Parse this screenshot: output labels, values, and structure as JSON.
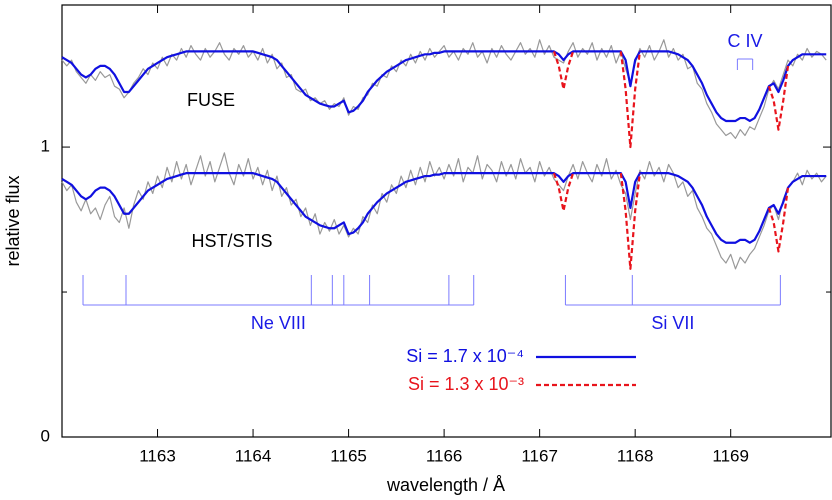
{
  "chart_data": {
    "type": "line",
    "xlabel": "wavelength / Å",
    "ylabel": "relative flux",
    "annotations": [
      "FUSE",
      "HST/STIS"
    ],
    "xlim": [
      1162,
      1170.05
    ],
    "ylim": [
      0,
      1.49
    ],
    "xticks": [
      1163,
      1164,
      1165,
      1166,
      1167,
      1168,
      1169
    ],
    "yticks": [
      0,
      1
    ],
    "yminor": [
      0.5
    ],
    "line_ids": [
      {
        "label": "Ne VIII",
        "style": "comb",
        "wavelengths": [
          1162.22,
          1162.67,
          1164.61,
          1164.83,
          1164.95,
          1165.22,
          1166.05,
          1166.31
        ]
      },
      {
        "label": "Si VII",
        "style": "comb",
        "wavelengths": [
          1167.27,
          1167.97,
          1169.52
        ]
      },
      {
        "label": "C IV",
        "style": "bracket",
        "wavelengths": [
          1169.07,
          1169.23
        ]
      }
    ],
    "line_id_color": "#7b7bff",
    "line_id_label_color": "#1a1ae6",
    "x": [
      1162,
      1162.05,
      1162.1,
      1162.15,
      1162.2,
      1162.25,
      1162.3,
      1162.35,
      1162.4,
      1162.45,
      1162.5,
      1162.55,
      1162.6,
      1162.65,
      1162.7,
      1162.75,
      1162.8,
      1162.85,
      1162.9,
      1162.95,
      1163,
      1163.05,
      1163.1,
      1163.15,
      1163.2,
      1163.25,
      1163.3,
      1163.35,
      1163.4,
      1163.45,
      1163.5,
      1163.55,
      1163.6,
      1163.65,
      1163.7,
      1163.75,
      1163.8,
      1163.85,
      1163.9,
      1163.95,
      1164,
      1164.05,
      1164.1,
      1164.15,
      1164.2,
      1164.25,
      1164.3,
      1164.35,
      1164.4,
      1164.45,
      1164.5,
      1164.55,
      1164.6,
      1164.65,
      1164.7,
      1164.75,
      1164.8,
      1164.85,
      1164.9,
      1164.95,
      1165,
      1165.05,
      1165.1,
      1165.15,
      1165.2,
      1165.25,
      1165.3,
      1165.35,
      1165.4,
      1165.45,
      1165.5,
      1165.55,
      1165.6,
      1165.65,
      1165.7,
      1165.75,
      1165.8,
      1165.85,
      1165.9,
      1165.95,
      1166,
      1166.05,
      1166.1,
      1166.15,
      1166.2,
      1166.25,
      1166.3,
      1166.35,
      1166.4,
      1166.45,
      1166.5,
      1166.55,
      1166.6,
      1166.65,
      1166.7,
      1166.75,
      1166.8,
      1166.85,
      1166.9,
      1166.95,
      1167,
      1167.05,
      1167.1,
      1167.15,
      1167.2,
      1167.25,
      1167.3,
      1167.35,
      1167.4,
      1167.45,
      1167.5,
      1167.55,
      1167.6,
      1167.65,
      1167.7,
      1167.75,
      1167.8,
      1167.85,
      1167.9,
      1167.95,
      1168,
      1168.05,
      1168.1,
      1168.15,
      1168.2,
      1168.25,
      1168.3,
      1168.35,
      1168.4,
      1168.45,
      1168.5,
      1168.55,
      1168.6,
      1168.65,
      1168.7,
      1168.75,
      1168.8,
      1168.85,
      1168.9,
      1168.95,
      1169,
      1169.05,
      1169.1,
      1169.15,
      1169.2,
      1169.25,
      1169.3,
      1169.35,
      1169.4,
      1169.45,
      1169.5,
      1169.55,
      1169.6,
      1169.65,
      1169.7,
      1169.75,
      1169.8,
      1169.85,
      1169.9,
      1169.95,
      1170
    ],
    "series": [
      {
        "color": "#999999",
        "dash": false,
        "values": [
          1.3,
          1.28,
          1.3,
          1.26,
          1.24,
          1.22,
          1.25,
          1.23,
          1.26,
          1.24,
          1.25,
          1.21,
          1.2,
          1.17,
          1.19,
          1.22,
          1.24,
          1.27,
          1.25,
          1.29,
          1.27,
          1.31,
          1.28,
          1.32,
          1.3,
          1.34,
          1.31,
          1.35,
          1.32,
          1.3,
          1.34,
          1.31,
          1.33,
          1.36,
          1.32,
          1.3,
          1.34,
          1.32,
          1.35,
          1.31,
          1.33,
          1.3,
          1.34,
          1.29,
          1.32,
          1.27,
          1.29,
          1.24,
          1.25,
          1.2,
          1.19,
          1.2,
          1.16,
          1.17,
          1.15,
          1.16,
          1.13,
          1.15,
          1.14,
          1.17,
          1.11,
          1.14,
          1.13,
          1.17,
          1.18,
          1.22,
          1.21,
          1.25,
          1.24,
          1.28,
          1.26,
          1.3,
          1.28,
          1.32,
          1.29,
          1.33,
          1.3,
          1.34,
          1.31,
          1.33,
          1.35,
          1.31,
          1.33,
          1.3,
          1.34,
          1.32,
          1.36,
          1.31,
          1.33,
          1.29,
          1.34,
          1.31,
          1.35,
          1.32,
          1.3,
          1.33,
          1.36,
          1.32,
          1.34,
          1.31,
          1.37,
          1.32,
          1.35,
          1.31,
          1.3,
          1.29,
          1.33,
          1.36,
          1.31,
          1.34,
          1.32,
          1.36,
          1.3,
          1.34,
          1.31,
          1.35,
          1.29,
          1.33,
          1.27,
          1.22,
          1.29,
          1.34,
          1.31,
          1.35,
          1.3,
          1.33,
          1.37,
          1.31,
          1.34,
          1.3,
          1.32,
          1.27,
          1.28,
          1.22,
          1.2,
          1.15,
          1.12,
          1.08,
          1.06,
          1.04,
          1.05,
          1.03,
          1.06,
          1.04,
          1.07,
          1.06,
          1.1,
          1.14,
          1.2,
          1.23,
          1.2,
          1.25,
          1.3,
          1.28,
          1.32,
          1.3,
          1.34,
          1.31,
          1.33,
          1.32,
          1.3
        ]
      },
      {
        "color": "#999999",
        "dash": false,
        "values": [
          0.88,
          0.85,
          0.87,
          0.81,
          0.78,
          0.82,
          0.77,
          0.79,
          0.75,
          0.8,
          0.83,
          0.76,
          0.74,
          0.79,
          0.72,
          0.8,
          0.85,
          0.82,
          0.88,
          0.84,
          0.9,
          0.86,
          0.93,
          0.88,
          0.95,
          0.89,
          0.94,
          0.87,
          0.92,
          0.97,
          0.9,
          0.95,
          0.88,
          0.93,
          0.98,
          0.91,
          0.87,
          0.94,
          0.9,
          0.96,
          0.89,
          0.93,
          0.87,
          0.92,
          0.85,
          0.9,
          0.83,
          0.86,
          0.8,
          0.82,
          0.76,
          0.79,
          0.73,
          0.77,
          0.7,
          0.74,
          0.71,
          0.75,
          0.7,
          0.73,
          0.69,
          0.72,
          0.7,
          0.76,
          0.74,
          0.8,
          0.77,
          0.84,
          0.81,
          0.87,
          0.84,
          0.9,
          0.86,
          0.92,
          0.87,
          0.93,
          0.88,
          0.95,
          0.9,
          0.93,
          0.89,
          0.94,
          0.9,
          0.96,
          0.88,
          0.93,
          0.91,
          0.97,
          0.89,
          0.94,
          0.92,
          0.88,
          0.95,
          0.9,
          0.94,
          0.89,
          0.96,
          0.91,
          0.93,
          0.88,
          0.95,
          0.9,
          0.93,
          0.89,
          0.87,
          0.85,
          0.9,
          0.94,
          0.89,
          0.95,
          0.91,
          0.88,
          0.94,
          0.9,
          0.96,
          0.89,
          0.92,
          0.87,
          0.84,
          0.75,
          0.84,
          0.92,
          0.89,
          0.95,
          0.9,
          0.93,
          0.88,
          0.94,
          0.91,
          0.86,
          0.88,
          0.83,
          0.85,
          0.79,
          0.76,
          0.72,
          0.7,
          0.66,
          0.62,
          0.6,
          0.63,
          0.58,
          0.62,
          0.6,
          0.63,
          0.65,
          0.69,
          0.73,
          0.78,
          0.8,
          0.75,
          0.82,
          0.86,
          0.88,
          0.91,
          0.87,
          0.92,
          0.89,
          0.91,
          0.88,
          0.9
        ]
      },
      {
        "name": "Si = 1.7 x 10⁻⁴",
        "color": "#1010e0",
        "dash": false,
        "values": [
          1.31,
          1.3,
          1.29,
          1.27,
          1.25,
          1.24,
          1.25,
          1.27,
          1.28,
          1.28,
          1.27,
          1.25,
          1.22,
          1.19,
          1.19,
          1.21,
          1.23,
          1.25,
          1.27,
          1.28,
          1.29,
          1.3,
          1.31,
          1.315,
          1.32,
          1.325,
          1.33,
          1.33,
          1.33,
          1.33,
          1.33,
          1.33,
          1.33,
          1.33,
          1.33,
          1.33,
          1.33,
          1.33,
          1.33,
          1.33,
          1.33,
          1.325,
          1.32,
          1.315,
          1.31,
          1.3,
          1.28,
          1.26,
          1.24,
          1.22,
          1.2,
          1.18,
          1.17,
          1.16,
          1.15,
          1.145,
          1.14,
          1.14,
          1.15,
          1.16,
          1.12,
          1.125,
          1.14,
          1.16,
          1.19,
          1.21,
          1.23,
          1.245,
          1.26,
          1.27,
          1.28,
          1.29,
          1.3,
          1.305,
          1.31,
          1.315,
          1.32,
          1.32,
          1.325,
          1.325,
          1.33,
          1.33,
          1.33,
          1.33,
          1.33,
          1.33,
          1.33,
          1.33,
          1.33,
          1.33,
          1.33,
          1.33,
          1.33,
          1.33,
          1.33,
          1.33,
          1.33,
          1.33,
          1.33,
          1.33,
          1.33,
          1.33,
          1.33,
          1.33,
          1.32,
          1.3,
          1.32,
          1.33,
          1.33,
          1.33,
          1.33,
          1.33,
          1.33,
          1.33,
          1.33,
          1.33,
          1.33,
          1.33,
          1.3,
          1.21,
          1.3,
          1.33,
          1.33,
          1.33,
          1.33,
          1.33,
          1.33,
          1.33,
          1.325,
          1.32,
          1.31,
          1.3,
          1.28,
          1.25,
          1.22,
          1.18,
          1.15,
          1.12,
          1.1,
          1.09,
          1.09,
          1.09,
          1.1,
          1.1,
          1.09,
          1.1,
          1.13,
          1.17,
          1.21,
          1.22,
          1.19,
          1.23,
          1.28,
          1.3,
          1.31,
          1.32,
          1.32,
          1.32,
          1.32,
          1.32,
          1.32
        ]
      },
      {
        "color": "#1010e0",
        "dash": false,
        "values": [
          0.89,
          0.88,
          0.87,
          0.85,
          0.83,
          0.82,
          0.83,
          0.85,
          0.86,
          0.86,
          0.85,
          0.83,
          0.8,
          0.77,
          0.77,
          0.79,
          0.81,
          0.83,
          0.85,
          0.86,
          0.87,
          0.88,
          0.89,
          0.895,
          0.9,
          0.905,
          0.91,
          0.91,
          0.91,
          0.91,
          0.91,
          0.91,
          0.91,
          0.91,
          0.91,
          0.91,
          0.91,
          0.91,
          0.91,
          0.91,
          0.91,
          0.905,
          0.9,
          0.895,
          0.89,
          0.88,
          0.86,
          0.84,
          0.82,
          0.8,
          0.78,
          0.76,
          0.75,
          0.74,
          0.73,
          0.725,
          0.72,
          0.72,
          0.73,
          0.74,
          0.7,
          0.705,
          0.72,
          0.74,
          0.77,
          0.79,
          0.81,
          0.825,
          0.84,
          0.85,
          0.86,
          0.87,
          0.88,
          0.885,
          0.89,
          0.895,
          0.9,
          0.9,
          0.905,
          0.905,
          0.91,
          0.91,
          0.91,
          0.91,
          0.91,
          0.91,
          0.91,
          0.91,
          0.91,
          0.91,
          0.91,
          0.91,
          0.91,
          0.91,
          0.91,
          0.91,
          0.91,
          0.91,
          0.91,
          0.91,
          0.91,
          0.91,
          0.91,
          0.91,
          0.9,
          0.88,
          0.9,
          0.91,
          0.91,
          0.91,
          0.91,
          0.91,
          0.91,
          0.91,
          0.91,
          0.91,
          0.91,
          0.91,
          0.88,
          0.79,
          0.88,
          0.91,
          0.91,
          0.91,
          0.91,
          0.91,
          0.91,
          0.91,
          0.905,
          0.9,
          0.89,
          0.88,
          0.86,
          0.83,
          0.8,
          0.76,
          0.73,
          0.7,
          0.68,
          0.67,
          0.67,
          0.67,
          0.68,
          0.68,
          0.67,
          0.68,
          0.71,
          0.75,
          0.79,
          0.8,
          0.77,
          0.81,
          0.86,
          0.88,
          0.89,
          0.9,
          0.9,
          0.9,
          0.9,
          0.9,
          0.9
        ]
      },
      {
        "name": "Si = 1.3 x 10⁻³",
        "color": "#e8141c",
        "dash": true,
        "values": [
          null,
          null,
          null,
          null,
          null,
          null,
          null,
          null,
          null,
          null,
          null,
          null,
          null,
          null,
          null,
          null,
          null,
          null,
          null,
          null,
          null,
          null,
          null,
          null,
          null,
          null,
          null,
          null,
          null,
          null,
          null,
          null,
          null,
          null,
          null,
          null,
          null,
          null,
          null,
          null,
          null,
          null,
          null,
          null,
          null,
          null,
          null,
          null,
          null,
          null,
          null,
          null,
          null,
          null,
          null,
          null,
          null,
          null,
          null,
          null,
          null,
          null,
          null,
          null,
          null,
          null,
          null,
          null,
          null,
          null,
          null,
          null,
          null,
          null,
          null,
          null,
          null,
          null,
          null,
          null,
          null,
          null,
          null,
          null,
          null,
          null,
          null,
          null,
          null,
          null,
          null,
          null,
          null,
          null,
          null,
          null,
          null,
          null,
          null,
          null,
          null,
          null,
          null,
          1.33,
          1.28,
          1.2,
          1.28,
          1.33,
          null,
          null,
          null,
          null,
          null,
          null,
          null,
          null,
          null,
          1.33,
          1.2,
          1.0,
          1.2,
          1.33,
          null,
          null,
          null,
          null,
          null,
          null,
          null,
          null,
          null,
          null,
          null,
          null,
          null,
          null,
          null,
          null,
          null,
          null,
          null,
          null,
          null,
          null,
          null,
          null,
          null,
          null,
          1.21,
          1.16,
          1.06,
          1.16,
          1.28,
          null,
          null,
          null,
          null,
          null,
          null,
          null,
          null
        ]
      },
      {
        "color": "#e8141c",
        "dash": true,
        "values": [
          null,
          null,
          null,
          null,
          null,
          null,
          null,
          null,
          null,
          null,
          null,
          null,
          null,
          null,
          null,
          null,
          null,
          null,
          null,
          null,
          null,
          null,
          null,
          null,
          null,
          null,
          null,
          null,
          null,
          null,
          null,
          null,
          null,
          null,
          null,
          null,
          null,
          null,
          null,
          null,
          null,
          null,
          null,
          null,
          null,
          null,
          null,
          null,
          null,
          null,
          null,
          null,
          null,
          null,
          null,
          null,
          null,
          null,
          null,
          null,
          null,
          null,
          null,
          null,
          null,
          null,
          null,
          null,
          null,
          null,
          null,
          null,
          null,
          null,
          null,
          null,
          null,
          null,
          null,
          null,
          null,
          null,
          null,
          null,
          null,
          null,
          null,
          null,
          null,
          null,
          null,
          null,
          null,
          null,
          null,
          null,
          null,
          null,
          null,
          null,
          null,
          null,
          null,
          0.91,
          0.86,
          0.78,
          0.86,
          0.91,
          null,
          null,
          null,
          null,
          null,
          null,
          null,
          null,
          null,
          0.91,
          0.78,
          0.58,
          0.78,
          0.91,
          null,
          null,
          null,
          null,
          null,
          null,
          null,
          null,
          null,
          null,
          null,
          null,
          null,
          null,
          null,
          null,
          null,
          null,
          null,
          null,
          null,
          null,
          null,
          null,
          null,
          null,
          0.79,
          0.74,
          0.64,
          0.74,
          0.86,
          null,
          null,
          null,
          null,
          null,
          null,
          null,
          null
        ]
      }
    ]
  }
}
